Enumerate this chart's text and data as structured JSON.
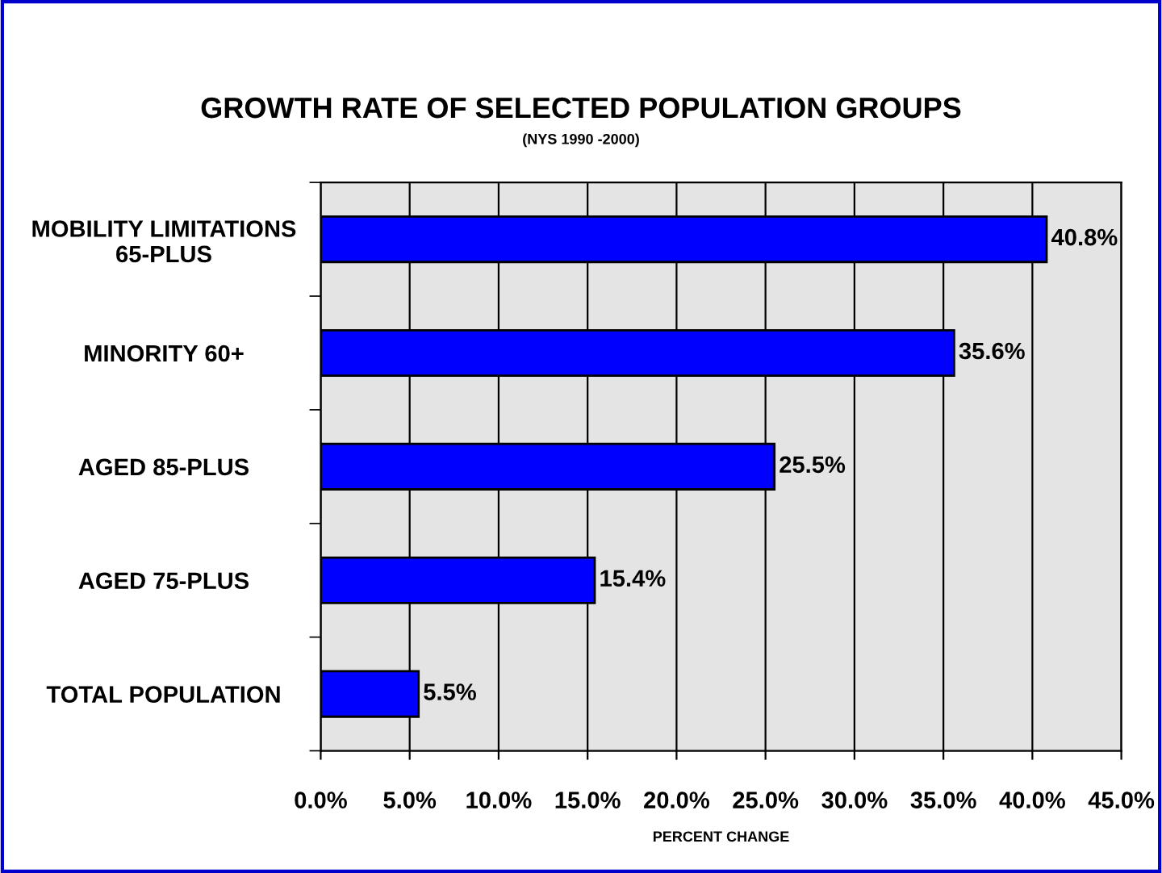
{
  "chart_data": {
    "type": "bar",
    "orientation": "horizontal",
    "title": "GROWTH RATE OF SELECTED POPULATION GROUPS",
    "subtitle": "(NYS 1990 -2000)",
    "xlabel": "PERCENT CHANGE",
    "categories": [
      "MOBILITY LIMITATIONS\n65-PLUS",
      "MINORITY 60+",
      "AGED 85-PLUS",
      "AGED 75-PLUS",
      "TOTAL POPULATION"
    ],
    "values": [
      40.8,
      35.6,
      25.5,
      15.4,
      5.5
    ],
    "color": "#0000ff",
    "value_labels": [
      "40.8%",
      "35.6%",
      "25.5%",
      "15.4%",
      "5.5%"
    ],
    "xlim": [
      0,
      45
    ],
    "xticks": [
      {
        "value": 0,
        "label": "0.0%"
      },
      {
        "value": 5,
        "label": "5.0%"
      },
      {
        "value": 10,
        "label": "10.0%"
      },
      {
        "value": 15,
        "label": "15.0%"
      },
      {
        "value": 20,
        "label": "20.0%"
      },
      {
        "value": 25,
        "label": "25.0%"
      },
      {
        "value": 30,
        "label": "30.0%"
      },
      {
        "value": 35,
        "label": "35.0%"
      },
      {
        "value": 40,
        "label": "40.0%"
      },
      {
        "value": 45,
        "label": "45.0%"
      }
    ],
    "grid": "x",
    "legend": false
  }
}
